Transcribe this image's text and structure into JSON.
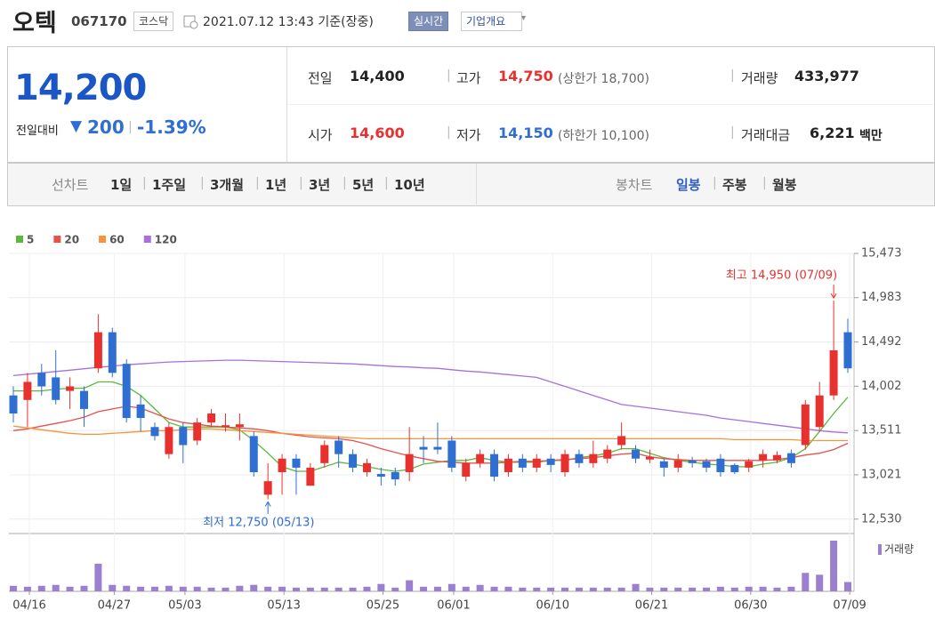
{
  "header": {
    "name": "오텍",
    "code": "067170",
    "market": "코스닥",
    "timestamp": "2021.07.12 13:43 기준(장중)",
    "realtime": "실시간",
    "company": "기업개요"
  },
  "quote": {
    "price": "14,200",
    "change_label": "전일대비",
    "change": "200",
    "change_rate": "-1.39%",
    "rows": [
      [
        {
          "label": "전일",
          "value": "14,400"
        },
        {
          "label": "고가",
          "value": "14,750",
          "note": "(상한가 18,700)"
        },
        {
          "label": "거래량",
          "value": "433,977"
        }
      ],
      [
        {
          "label": "시가",
          "value": "14,600"
        },
        {
          "label": "저가",
          "value": "14,150",
          "note": "(하한가 10,100)"
        },
        {
          "label": "거래대금",
          "value": "6,221",
          "unit": "백만"
        }
      ]
    ]
  },
  "tabs": {
    "line_label": "선차트",
    "line": [
      "1일",
      "1주일",
      "3개월",
      "1년",
      "3년",
      "5년",
      "10년"
    ],
    "candle_label": "봉차트",
    "candle": [
      "일봉",
      "주봉",
      "월봉"
    ]
  },
  "chart_data": {
    "type": "candlestick",
    "categories": [
      "04/16",
      null,
      null,
      null,
      null,
      null,
      "04/27",
      null,
      null,
      null,
      null,
      "05/03",
      null,
      null,
      null,
      null,
      null,
      null,
      "05/13",
      null,
      null,
      null,
      null,
      null,
      null,
      "05/25",
      null,
      null,
      null,
      null,
      "06/01",
      null,
      null,
      null,
      null,
      null,
      null,
      "06/10",
      null,
      null,
      null,
      null,
      null,
      null,
      "06/21",
      null,
      null,
      null,
      null,
      null,
      null,
      "06/30",
      null,
      null,
      null,
      null,
      null,
      null,
      "07/09",
      null
    ],
    "open": [
      13900,
      13850,
      14150,
      14100,
      13950,
      13950,
      14200,
      14600,
      14250,
      13800,
      13550,
      13250,
      13550,
      13400,
      13600,
      13550,
      13550,
      13450,
      12800,
      13050,
      13200,
      12900,
      13150,
      13400,
      13250,
      13050,
      13030,
      13050,
      13050,
      13330,
      13330,
      13400,
      13000,
      13150,
      13250,
      13050,
      13200,
      13100,
      13200,
      13050,
      13250,
      13150,
      13200,
      13350,
      13300,
      13190,
      13170,
      13100,
      13180,
      13170,
      13200,
      13130,
      13100,
      13180,
      13180,
      13260,
      13350,
      13550,
      13900,
      14600
    ],
    "high": [
      14000,
      14150,
      14250,
      14400,
      14100,
      14000,
      14800,
      14650,
      14300,
      13900,
      13600,
      13600,
      13600,
      13650,
      13750,
      13700,
      13700,
      13500,
      13150,
      13250,
      13250,
      13150,
      13400,
      13450,
      13300,
      13200,
      13100,
      13100,
      13550,
      13450,
      13600,
      13450,
      13200,
      13300,
      13300,
      13250,
      13250,
      13250,
      13250,
      13300,
      13300,
      13400,
      13350,
      13600,
      13350,
      13300,
      13200,
      13250,
      13220,
      13200,
      13250,
      13150,
      13200,
      13300,
      13280,
      13300,
      13850,
      14050,
      14950,
      14750
    ],
    "low": [
      13600,
      13550,
      13900,
      13800,
      13750,
      13550,
      14150,
      14100,
      13600,
      13500,
      13400,
      13200,
      13150,
      13350,
      13550,
      13500,
      13400,
      13000,
      12750,
      12800,
      12800,
      12900,
      13100,
      13100,
      13050,
      13000,
      12900,
      12900,
      12950,
      13150,
      13250,
      13050,
      12950,
      13100,
      12950,
      13000,
      13050,
      13050,
      13050,
      13000,
      13100,
      13100,
      13150,
      13300,
      13150,
      13150,
      13000,
      13050,
      13100,
      13050,
      13000,
      13030,
      13050,
      13100,
      13150,
      13100,
      13300,
      13500,
      13850,
      14150
    ],
    "close": [
      13700,
      14050,
      14000,
      13850,
      14000,
      13750,
      14600,
      14150,
      13650,
      13650,
      13450,
      13550,
      13350,
      13600,
      13700,
      13570,
      13580,
      13050,
      12950,
      13200,
      13100,
      13100,
      13350,
      13250,
      13100,
      13150,
      13000,
      12970,
      13250,
      13300,
      13300,
      13100,
      13150,
      13250,
      13000,
      13200,
      13100,
      13200,
      13130,
      13250,
      13150,
      13250,
      13300,
      13450,
      13200,
      13220,
      13100,
      13180,
      13150,
      13100,
      13050,
      13050,
      13170,
      13250,
      13240,
      13150,
      13800,
      13900,
      14400,
      14200
    ],
    "up_color": "#e8312f",
    "down_color": "#2f6fd1",
    "series": [
      {
        "name": "5",
        "color": "#5cb83c",
        "values": [
          13950,
          13950,
          13950,
          13970,
          13980,
          13980,
          14050,
          14050,
          14000,
          13900,
          13750,
          13600,
          13550,
          13550,
          13550,
          13550,
          13520,
          13400,
          13260,
          13110,
          13060,
          13060,
          13110,
          13160,
          13140,
          13110,
          13080,
          13060,
          13080,
          13140,
          13160,
          13180,
          13180,
          13210,
          13180,
          13160,
          13160,
          13160,
          13180,
          13180,
          13210,
          13230,
          13260,
          13310,
          13310,
          13260,
          13210,
          13180,
          13160,
          13140,
          13130,
          13110,
          13110,
          13140,
          13160,
          13210,
          13310,
          13500,
          13700,
          13880
        ]
      },
      {
        "name": "20",
        "color": "#e8504a",
        "values": [
          13510,
          13530,
          13560,
          13590,
          13620,
          13660,
          13720,
          13750,
          13780,
          13760,
          13700,
          13640,
          13600,
          13580,
          13560,
          13550,
          13540,
          13530,
          13510,
          13480,
          13460,
          13440,
          13430,
          13420,
          13400,
          13360,
          13310,
          13270,
          13230,
          13200,
          13170,
          13160,
          13150,
          13150,
          13150,
          13160,
          13170,
          13170,
          13180,
          13190,
          13200,
          13210,
          13230,
          13250,
          13260,
          13220,
          13200,
          13190,
          13180,
          13180,
          13180,
          13180,
          13180,
          13180,
          13190,
          13210,
          13240,
          13260,
          13300,
          13370
        ]
      },
      {
        "name": "60",
        "color": "#f7943a",
        "values": [
          13560,
          13540,
          13520,
          13500,
          13480,
          13470,
          13470,
          13480,
          13490,
          13500,
          13510,
          13510,
          13520,
          13530,
          13530,
          13520,
          13510,
          13500,
          13490,
          13480,
          13470,
          13460,
          13450,
          13440,
          13430,
          13420,
          13420,
          13420,
          13420,
          13420,
          13420,
          13420,
          13420,
          13420,
          13420,
          13420,
          13420,
          13420,
          13420,
          13420,
          13420,
          13420,
          13420,
          13420,
          13420,
          13420,
          13420,
          13420,
          13420,
          13420,
          13420,
          13410,
          13410,
          13410,
          13410,
          13410,
          13400,
          13400,
          13400,
          13400
        ]
      },
      {
        "name": "120",
        "color": "#a96fdc",
        "values": [
          14120,
          14135,
          14150,
          14165,
          14180,
          14195,
          14210,
          14225,
          14240,
          14250,
          14260,
          14270,
          14275,
          14280,
          14285,
          14290,
          14290,
          14285,
          14280,
          14275,
          14270,
          14265,
          14260,
          14255,
          14250,
          14240,
          14230,
          14220,
          14215,
          14205,
          14200,
          14185,
          14170,
          14160,
          14145,
          14130,
          14115,
          14100,
          14050,
          14000,
          13950,
          13900,
          13850,
          13800,
          13780,
          13760,
          13740,
          13720,
          13700,
          13680,
          13650,
          13630,
          13610,
          13590,
          13570,
          13550,
          13530,
          13510,
          13495,
          13485
        ]
      }
    ],
    "volume": {
      "name": "거래량",
      "color": "#9b80cf",
      "values": [
        258000,
        215000,
        258000,
        301000,
        215000,
        258000,
        1290000,
        301000,
        258000,
        215000,
        215000,
        258000,
        215000,
        215000,
        172000,
        172000,
        258000,
        301000,
        215000,
        215000,
        172000,
        172000,
        172000,
        172000,
        172000,
        215000,
        344000,
        172000,
        516000,
        215000,
        215000,
        344000,
        215000,
        301000,
        215000,
        215000,
        172000,
        172000,
        172000,
        172000,
        172000,
        172000,
        172000,
        172000,
        344000,
        172000,
        172000,
        172000,
        172000,
        172000,
        215000,
        172000,
        215000,
        215000,
        172000,
        215000,
        860000,
        774000,
        2365000,
        433977
      ]
    },
    "ylim": [
      12390,
      15473
    ],
    "yticks": [
      {
        "value": 15473,
        "label": "15,473"
      },
      {
        "value": 14983,
        "label": "14,983"
      },
      {
        "value": 14492,
        "label": "14,492"
      },
      {
        "value": 14002,
        "label": "14,002"
      },
      {
        "value": 13511,
        "label": "13,511"
      },
      {
        "value": 13021,
        "label": "13,021"
      },
      {
        "value": 12530,
        "label": "12,530"
      }
    ],
    "grid": true,
    "annotations": [
      {
        "text": "최고 14,950 (07/09)",
        "color": "#e8312f"
      },
      {
        "text": "최저 12,750 (05/13)",
        "color": "#2f6fd1"
      }
    ]
  }
}
